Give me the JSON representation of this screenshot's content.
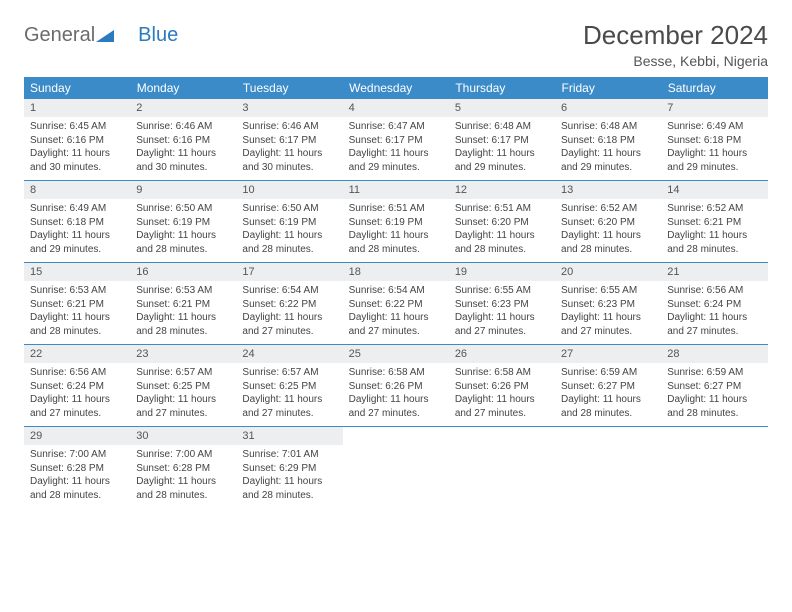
{
  "logo": {
    "part1": "General",
    "part2": "Blue"
  },
  "title": "December 2024",
  "location": "Besse, Kebbi, Nigeria",
  "colors": {
    "header_bg": "#3b8bc9",
    "header_fg": "#ffffff",
    "daynum_bg": "#eceef0",
    "border": "#3b8bc9",
    "logo_accent": "#2b7bbf",
    "logo_gray": "#6b6b6b"
  },
  "weekdays": [
    "Sunday",
    "Monday",
    "Tuesday",
    "Wednesday",
    "Thursday",
    "Friday",
    "Saturday"
  ],
  "weeks": [
    [
      {
        "n": "1",
        "sr": "Sunrise: 6:45 AM",
        "ss": "Sunset: 6:16 PM",
        "d1": "Daylight: 11 hours",
        "d2": "and 30 minutes."
      },
      {
        "n": "2",
        "sr": "Sunrise: 6:46 AM",
        "ss": "Sunset: 6:16 PM",
        "d1": "Daylight: 11 hours",
        "d2": "and 30 minutes."
      },
      {
        "n": "3",
        "sr": "Sunrise: 6:46 AM",
        "ss": "Sunset: 6:17 PM",
        "d1": "Daylight: 11 hours",
        "d2": "and 30 minutes."
      },
      {
        "n": "4",
        "sr": "Sunrise: 6:47 AM",
        "ss": "Sunset: 6:17 PM",
        "d1": "Daylight: 11 hours",
        "d2": "and 29 minutes."
      },
      {
        "n": "5",
        "sr": "Sunrise: 6:48 AM",
        "ss": "Sunset: 6:17 PM",
        "d1": "Daylight: 11 hours",
        "d2": "and 29 minutes."
      },
      {
        "n": "6",
        "sr": "Sunrise: 6:48 AM",
        "ss": "Sunset: 6:18 PM",
        "d1": "Daylight: 11 hours",
        "d2": "and 29 minutes."
      },
      {
        "n": "7",
        "sr": "Sunrise: 6:49 AM",
        "ss": "Sunset: 6:18 PM",
        "d1": "Daylight: 11 hours",
        "d2": "and 29 minutes."
      }
    ],
    [
      {
        "n": "8",
        "sr": "Sunrise: 6:49 AM",
        "ss": "Sunset: 6:18 PM",
        "d1": "Daylight: 11 hours",
        "d2": "and 29 minutes."
      },
      {
        "n": "9",
        "sr": "Sunrise: 6:50 AM",
        "ss": "Sunset: 6:19 PM",
        "d1": "Daylight: 11 hours",
        "d2": "and 28 minutes."
      },
      {
        "n": "10",
        "sr": "Sunrise: 6:50 AM",
        "ss": "Sunset: 6:19 PM",
        "d1": "Daylight: 11 hours",
        "d2": "and 28 minutes."
      },
      {
        "n": "11",
        "sr": "Sunrise: 6:51 AM",
        "ss": "Sunset: 6:19 PM",
        "d1": "Daylight: 11 hours",
        "d2": "and 28 minutes."
      },
      {
        "n": "12",
        "sr": "Sunrise: 6:51 AM",
        "ss": "Sunset: 6:20 PM",
        "d1": "Daylight: 11 hours",
        "d2": "and 28 minutes."
      },
      {
        "n": "13",
        "sr": "Sunrise: 6:52 AM",
        "ss": "Sunset: 6:20 PM",
        "d1": "Daylight: 11 hours",
        "d2": "and 28 minutes."
      },
      {
        "n": "14",
        "sr": "Sunrise: 6:52 AM",
        "ss": "Sunset: 6:21 PM",
        "d1": "Daylight: 11 hours",
        "d2": "and 28 minutes."
      }
    ],
    [
      {
        "n": "15",
        "sr": "Sunrise: 6:53 AM",
        "ss": "Sunset: 6:21 PM",
        "d1": "Daylight: 11 hours",
        "d2": "and 28 minutes."
      },
      {
        "n": "16",
        "sr": "Sunrise: 6:53 AM",
        "ss": "Sunset: 6:21 PM",
        "d1": "Daylight: 11 hours",
        "d2": "and 28 minutes."
      },
      {
        "n": "17",
        "sr": "Sunrise: 6:54 AM",
        "ss": "Sunset: 6:22 PM",
        "d1": "Daylight: 11 hours",
        "d2": "and 27 minutes."
      },
      {
        "n": "18",
        "sr": "Sunrise: 6:54 AM",
        "ss": "Sunset: 6:22 PM",
        "d1": "Daylight: 11 hours",
        "d2": "and 27 minutes."
      },
      {
        "n": "19",
        "sr": "Sunrise: 6:55 AM",
        "ss": "Sunset: 6:23 PM",
        "d1": "Daylight: 11 hours",
        "d2": "and 27 minutes."
      },
      {
        "n": "20",
        "sr": "Sunrise: 6:55 AM",
        "ss": "Sunset: 6:23 PM",
        "d1": "Daylight: 11 hours",
        "d2": "and 27 minutes."
      },
      {
        "n": "21",
        "sr": "Sunrise: 6:56 AM",
        "ss": "Sunset: 6:24 PM",
        "d1": "Daylight: 11 hours",
        "d2": "and 27 minutes."
      }
    ],
    [
      {
        "n": "22",
        "sr": "Sunrise: 6:56 AM",
        "ss": "Sunset: 6:24 PM",
        "d1": "Daylight: 11 hours",
        "d2": "and 27 minutes."
      },
      {
        "n": "23",
        "sr": "Sunrise: 6:57 AM",
        "ss": "Sunset: 6:25 PM",
        "d1": "Daylight: 11 hours",
        "d2": "and 27 minutes."
      },
      {
        "n": "24",
        "sr": "Sunrise: 6:57 AM",
        "ss": "Sunset: 6:25 PM",
        "d1": "Daylight: 11 hours",
        "d2": "and 27 minutes."
      },
      {
        "n": "25",
        "sr": "Sunrise: 6:58 AM",
        "ss": "Sunset: 6:26 PM",
        "d1": "Daylight: 11 hours",
        "d2": "and 27 minutes."
      },
      {
        "n": "26",
        "sr": "Sunrise: 6:58 AM",
        "ss": "Sunset: 6:26 PM",
        "d1": "Daylight: 11 hours",
        "d2": "and 27 minutes."
      },
      {
        "n": "27",
        "sr": "Sunrise: 6:59 AM",
        "ss": "Sunset: 6:27 PM",
        "d1": "Daylight: 11 hours",
        "d2": "and 28 minutes."
      },
      {
        "n": "28",
        "sr": "Sunrise: 6:59 AM",
        "ss": "Sunset: 6:27 PM",
        "d1": "Daylight: 11 hours",
        "d2": "and 28 minutes."
      }
    ],
    [
      {
        "n": "29",
        "sr": "Sunrise: 7:00 AM",
        "ss": "Sunset: 6:28 PM",
        "d1": "Daylight: 11 hours",
        "d2": "and 28 minutes."
      },
      {
        "n": "30",
        "sr": "Sunrise: 7:00 AM",
        "ss": "Sunset: 6:28 PM",
        "d1": "Daylight: 11 hours",
        "d2": "and 28 minutes."
      },
      {
        "n": "31",
        "sr": "Sunrise: 7:01 AM",
        "ss": "Sunset: 6:29 PM",
        "d1": "Daylight: 11 hours",
        "d2": "and 28 minutes."
      },
      null,
      null,
      null,
      null
    ]
  ]
}
